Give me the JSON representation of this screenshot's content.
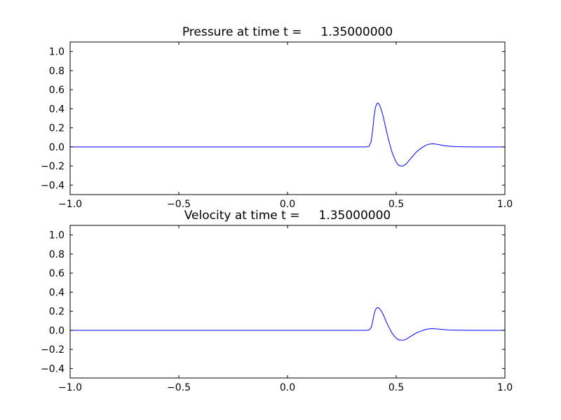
{
  "figure": {
    "background": "#ffffff",
    "axes_color": "#000000",
    "line_color": "#0000ff"
  },
  "chart_data": [
    {
      "type": "line",
      "title": "Pressure at time t =     1.35000000",
      "xlabel": "",
      "ylabel": "",
      "xlim": [
        -1.0,
        1.0
      ],
      "ylim": [
        -0.5,
        1.1
      ],
      "xticks": [
        -1.0,
        -0.5,
        0.0,
        0.5,
        1.0
      ],
      "xticklabels": [
        "−1.0",
        "−0.5",
        "0.0",
        "0.5",
        "1.0"
      ],
      "yticks": [
        -0.4,
        -0.2,
        0.0,
        0.2,
        0.4,
        0.6,
        0.8,
        1.0
      ],
      "yticklabels": [
        "−0.4",
        "−0.2",
        "0.0",
        "0.2",
        "0.4",
        "0.6",
        "0.8",
        "1.0"
      ],
      "grid": false,
      "legend": null,
      "line_color": "#0000ff",
      "series": [
        {
          "name": "pressure",
          "x": [
            -1.0,
            0.3,
            0.36,
            0.375,
            0.385,
            0.392,
            0.398,
            0.404,
            0.41,
            0.416,
            0.422,
            0.43,
            0.44,
            0.45,
            0.46,
            0.47,
            0.48,
            0.49,
            0.5,
            0.51,
            0.52,
            0.532,
            0.545,
            0.56,
            0.575,
            0.59,
            0.605,
            0.62,
            0.635,
            0.65,
            0.665,
            0.68,
            0.7,
            0.72,
            0.745,
            0.775,
            0.81,
            0.85,
            1.0
          ],
          "y": [
            0,
            0,
            0,
            0.005,
            0.06,
            0.18,
            0.32,
            0.41,
            0.45,
            0.46,
            0.445,
            0.4,
            0.32,
            0.22,
            0.12,
            0.03,
            -0.05,
            -0.11,
            -0.16,
            -0.19,
            -0.2,
            -0.2,
            -0.18,
            -0.14,
            -0.1,
            -0.06,
            -0.03,
            -0.005,
            0.015,
            0.028,
            0.033,
            0.03,
            0.022,
            0.014,
            0.007,
            0.003,
            0.001,
            0,
            0
          ]
        }
      ]
    },
    {
      "type": "line",
      "title": "Velocity at time t =     1.35000000",
      "xlabel": "",
      "ylabel": "",
      "xlim": [
        -1.0,
        1.0
      ],
      "ylim": [
        -0.5,
        1.1
      ],
      "xticks": [
        -1.0,
        -0.5,
        0.0,
        0.5,
        1.0
      ],
      "xticklabels": [
        "−1.0",
        "−0.5",
        "0.0",
        "0.5",
        "1.0"
      ],
      "yticks": [
        -0.4,
        -0.2,
        0.0,
        0.2,
        0.4,
        0.6,
        0.8,
        1.0
      ],
      "yticklabels": [
        "−0.4",
        "−0.2",
        "0.0",
        "0.2",
        "0.4",
        "0.6",
        "0.8",
        "1.0"
      ],
      "grid": false,
      "legend": null,
      "line_color": "#0000ff",
      "series": [
        {
          "name": "velocity",
          "x": [
            -1.0,
            0.3,
            0.36,
            0.375,
            0.385,
            0.392,
            0.398,
            0.404,
            0.41,
            0.416,
            0.422,
            0.43,
            0.44,
            0.45,
            0.46,
            0.47,
            0.48,
            0.49,
            0.5,
            0.51,
            0.52,
            0.532,
            0.545,
            0.56,
            0.575,
            0.59,
            0.605,
            0.62,
            0.635,
            0.65,
            0.665,
            0.68,
            0.7,
            0.72,
            0.745,
            0.775,
            0.81,
            0.85,
            1.0
          ],
          "y": [
            0,
            0,
            0,
            0.003,
            0.031,
            0.094,
            0.166,
            0.213,
            0.234,
            0.239,
            0.231,
            0.208,
            0.166,
            0.114,
            0.062,
            0.016,
            -0.026,
            -0.057,
            -0.083,
            -0.099,
            -0.104,
            -0.104,
            -0.094,
            -0.073,
            -0.052,
            -0.031,
            -0.016,
            -0.003,
            0.008,
            0.015,
            0.017,
            0.016,
            0.011,
            0.007,
            0.004,
            0.002,
            0.001,
            0,
            0
          ]
        }
      ]
    }
  ]
}
